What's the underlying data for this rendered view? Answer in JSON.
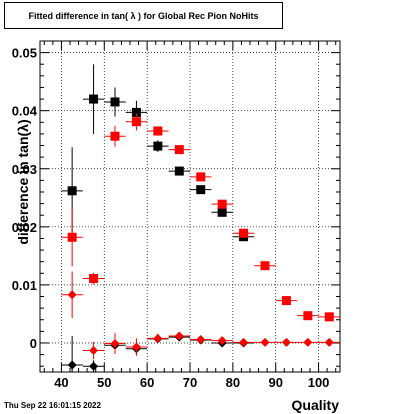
{
  "chart_data": {
    "type": "scatter",
    "title": "Fitted difference in tan( λ ) for Global Rec Pion NoHits",
    "xlabel": "Quality",
    "ylabel": "difference in tan(λ)",
    "xlim": [
      35,
      105
    ],
    "ylim": [
      -0.005,
      0.052
    ],
    "xticks": [
      40,
      50,
      60,
      70,
      80,
      90,
      100
    ],
    "xtick_labels": [
      "40",
      "50",
      "60",
      "70",
      "80",
      "90",
      "100"
    ],
    "yticks": [
      0,
      0.01,
      0.02,
      0.03,
      0.04,
      0.05
    ],
    "ytick_labels": [
      "0",
      "0.01",
      "0.02",
      "0.03",
      "0.04",
      "0.05"
    ],
    "grid": true,
    "series": [
      {
        "marker": "square",
        "color": "#000000",
        "points": [
          {
            "x": 42.5,
            "y": 0.0262,
            "yerr": 0.0075
          },
          {
            "x": 47.5,
            "y": 0.042,
            "yerr": 0.006
          },
          {
            "x": 52.5,
            "y": 0.0415,
            "yerr": 0.0025
          },
          {
            "x": 57.5,
            "y": 0.0397,
            "yerr": 0.002
          },
          {
            "x": 62.5,
            "y": 0.0339,
            "yerr": 0.001
          },
          {
            "x": 67.5,
            "y": 0.0296,
            "yerr": 0.0006
          },
          {
            "x": 72.5,
            "y": 0.0264,
            "yerr": 0.0006
          },
          {
            "x": 77.5,
            "y": 0.0225,
            "yerr": 0.0006
          },
          {
            "x": 82.5,
            "y": 0.0183,
            "yerr": 0.0006
          }
        ]
      },
      {
        "marker": "square",
        "color": "#ff0000",
        "points": [
          {
            "x": 42.5,
            "y": 0.0182,
            "yerr": 0.005
          },
          {
            "x": 47.5,
            "y": 0.0111,
            "yerr": 0.001
          },
          {
            "x": 52.5,
            "y": 0.0356,
            "yerr": 0.0018
          },
          {
            "x": 57.5,
            "y": 0.0381,
            "yerr": 0.0015
          },
          {
            "x": 62.5,
            "y": 0.0365,
            "yerr": 0.0008
          },
          {
            "x": 67.5,
            "y": 0.0333,
            "yerr": 0.0005
          },
          {
            "x": 72.5,
            "y": 0.0286,
            "yerr": 0.0005
          },
          {
            "x": 77.5,
            "y": 0.0239,
            "yerr": 0.0005
          },
          {
            "x": 82.5,
            "y": 0.0189,
            "yerr": 0.0005
          },
          {
            "x": 87.5,
            "y": 0.0133,
            "yerr": 0.0005
          },
          {
            "x": 92.5,
            "y": 0.0073,
            "yerr": 0.0003
          },
          {
            "x": 97.5,
            "y": 0.0047,
            "yerr": 0.0003
          },
          {
            "x": 102.5,
            "y": 0.0045,
            "yerr": 0.0003
          }
        ]
      },
      {
        "marker": "diamond",
        "color": "#000000",
        "points": [
          {
            "x": 42.5,
            "y": -0.0038,
            "yerr": 0.005
          },
          {
            "x": 47.5,
            "y": -0.004,
            "yerr": 0.001
          },
          {
            "x": 52.5,
            "y": -0.0004,
            "yerr": 0.0015
          },
          {
            "x": 57.5,
            "y": -0.001,
            "yerr": 0.001
          },
          {
            "x": 62.5,
            "y": 0.0007,
            "yerr": 0.0006
          },
          {
            "x": 67.5,
            "y": 0.001,
            "yerr": 0.0005
          },
          {
            "x": 72.5,
            "y": 0.0005,
            "yerr": 0.0003
          },
          {
            "x": 77.5,
            "y": 0.0,
            "yerr": 0.0003
          },
          {
            "x": 82.5,
            "y": 0.0,
            "yerr": 0.0002
          }
        ]
      },
      {
        "marker": "diamond",
        "color": "#ff0000",
        "points": [
          {
            "x": 42.5,
            "y": 0.0083,
            "yerr": 0.004
          },
          {
            "x": 47.5,
            "y": -0.0013,
            "yerr": 0.0015
          },
          {
            "x": 52.5,
            "y": -0.0001,
            "yerr": 0.0018
          },
          {
            "x": 57.5,
            "y": -0.0007,
            "yerr": 0.0015
          },
          {
            "x": 62.5,
            "y": 0.0008,
            "yerr": 0.0008
          },
          {
            "x": 67.5,
            "y": 0.0012,
            "yerr": 0.0005
          },
          {
            "x": 72.5,
            "y": 0.0006,
            "yerr": 0.0004
          },
          {
            "x": 77.5,
            "y": 0.0004,
            "yerr": 0.0003
          },
          {
            "x": 82.5,
            "y": 0.0001,
            "yerr": 0.0002
          },
          {
            "x": 87.5,
            "y": 0.0001,
            "yerr": 0.0002
          },
          {
            "x": 92.5,
            "y": 0.0001,
            "yerr": 0.0002
          },
          {
            "x": 97.5,
            "y": 0.0001,
            "yerr": 0.0002
          },
          {
            "x": 102.5,
            "y": 0.0001,
            "yerr": 0.0002
          }
        ]
      }
    ]
  },
  "footer": {
    "timestamp": "Thu Sep 22 16:01:15 2022"
  }
}
